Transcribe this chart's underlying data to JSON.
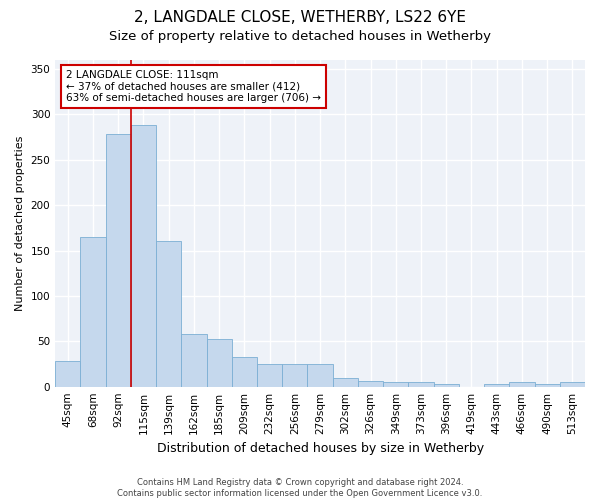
{
  "title1": "2, LANGDALE CLOSE, WETHERBY, LS22 6YE",
  "title2": "Size of property relative to detached houses in Wetherby",
  "xlabel": "Distribution of detached houses by size in Wetherby",
  "ylabel": "Number of detached properties",
  "categories": [
    "45sqm",
    "68sqm",
    "92sqm",
    "115sqm",
    "139sqm",
    "162sqm",
    "185sqm",
    "209sqm",
    "232sqm",
    "256sqm",
    "279sqm",
    "302sqm",
    "326sqm",
    "349sqm",
    "373sqm",
    "396sqm",
    "419sqm",
    "443sqm",
    "466sqm",
    "490sqm",
    "513sqm"
  ],
  "values": [
    28,
    165,
    278,
    288,
    160,
    58,
    52,
    33,
    25,
    25,
    25,
    10,
    6,
    5,
    5,
    3,
    0,
    3,
    5,
    3,
    5
  ],
  "bar_color": "#c5d8ed",
  "bar_edge_color": "#7bafd4",
  "red_line_x": 2.5,
  "annotation_line1": "2 LANGDALE CLOSE: 111sqm",
  "annotation_line2": "← 37% of detached houses are smaller (412)",
  "annotation_line3": "63% of semi-detached houses are larger (706) →",
  "red_line_color": "#cc0000",
  "ylim": [
    0,
    360
  ],
  "yticks": [
    0,
    50,
    100,
    150,
    200,
    250,
    300,
    350
  ],
  "footer1": "Contains HM Land Registry data © Crown copyright and database right 2024.",
  "footer2": "Contains public sector information licensed under the Open Government Licence v3.0.",
  "bg_color": "#eef2f8",
  "grid_color": "#ffffff",
  "title1_fontsize": 11,
  "title2_fontsize": 9.5,
  "tick_fontsize": 7.5,
  "ylabel_fontsize": 8,
  "xlabel_fontsize": 9,
  "annotation_fontsize": 7.5,
  "footer_fontsize": 6
}
